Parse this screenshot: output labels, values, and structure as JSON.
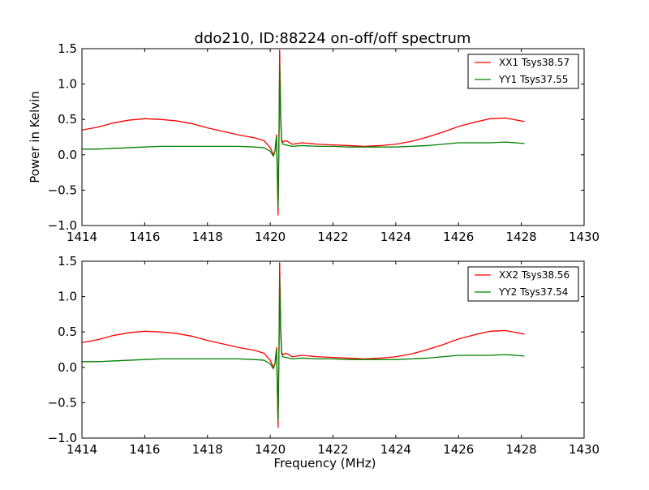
{
  "figure": {
    "title": "ddo210, ID:88224 on-off/off spectrum"
  },
  "chart_data": [
    {
      "type": "line",
      "title": "ddo210, ID:88224 on-off/off spectrum",
      "xlabel": "",
      "ylabel": "Power in Kelvin",
      "xlim": [
        1414,
        1430
      ],
      "ylim": [
        -1.0,
        1.5
      ],
      "xticks": [
        1414,
        1416,
        1418,
        1420,
        1422,
        1424,
        1426,
        1428,
        1430
      ],
      "yticks": [
        -1.0,
        -0.5,
        0.0,
        0.5,
        1.0,
        1.5
      ],
      "grid": false,
      "legend_position": "top-right",
      "series": [
        {
          "name": "XX1 Tsys38.57",
          "color": "#ff0000",
          "x": [
            1414.0,
            1414.5,
            1415.0,
            1415.5,
            1416.0,
            1416.5,
            1417.0,
            1417.5,
            1418.0,
            1418.5,
            1419.0,
            1419.5,
            1419.8,
            1420.0,
            1420.1,
            1420.15,
            1420.2,
            1420.25,
            1420.28,
            1420.3,
            1420.33,
            1420.36,
            1420.4,
            1420.5,
            1420.7,
            1421.0,
            1421.5,
            1422.0,
            1422.5,
            1423.0,
            1423.5,
            1424.0,
            1424.5,
            1425.0,
            1425.5,
            1426.0,
            1426.5,
            1427.0,
            1427.5,
            1428.1
          ],
          "y": [
            0.35,
            0.39,
            0.45,
            0.49,
            0.51,
            0.5,
            0.48,
            0.44,
            0.38,
            0.33,
            0.28,
            0.24,
            0.2,
            0.1,
            0.0,
            0.05,
            0.28,
            -0.85,
            0.3,
            1.48,
            0.6,
            0.22,
            0.18,
            0.2,
            0.15,
            0.17,
            0.15,
            0.14,
            0.13,
            0.12,
            0.13,
            0.15,
            0.19,
            0.25,
            0.32,
            0.4,
            0.46,
            0.51,
            0.52,
            0.47
          ]
        },
        {
          "name": "YY1 Tsys37.55",
          "color": "#008000",
          "x": [
            1414.0,
            1414.5,
            1415.0,
            1415.5,
            1416.0,
            1416.5,
            1417.0,
            1417.5,
            1418.0,
            1418.5,
            1419.0,
            1419.5,
            1419.8,
            1420.0,
            1420.1,
            1420.15,
            1420.2,
            1420.25,
            1420.28,
            1420.3,
            1420.33,
            1420.36,
            1420.4,
            1420.5,
            1420.7,
            1421.0,
            1421.5,
            1422.0,
            1422.5,
            1423.0,
            1423.5,
            1424.0,
            1424.5,
            1425.0,
            1425.5,
            1426.0,
            1426.5,
            1427.0,
            1427.5,
            1428.1
          ],
          "y": [
            0.08,
            0.08,
            0.09,
            0.1,
            0.11,
            0.12,
            0.12,
            0.12,
            0.12,
            0.12,
            0.12,
            0.11,
            0.1,
            0.05,
            -0.02,
            0.05,
            0.25,
            -0.75,
            0.3,
            1.28,
            0.55,
            0.2,
            0.15,
            0.14,
            0.12,
            0.13,
            0.12,
            0.12,
            0.11,
            0.11,
            0.11,
            0.11,
            0.12,
            0.13,
            0.15,
            0.17,
            0.17,
            0.17,
            0.18,
            0.16
          ]
        }
      ]
    },
    {
      "type": "line",
      "title": "",
      "xlabel": "Frequency (MHz)",
      "ylabel": "",
      "xlim": [
        1414,
        1430
      ],
      "ylim": [
        -1.0,
        1.5
      ],
      "xticks": [
        1414,
        1416,
        1418,
        1420,
        1422,
        1424,
        1426,
        1428,
        1430
      ],
      "yticks": [
        -1.0,
        -0.5,
        0.0,
        0.5,
        1.0,
        1.5
      ],
      "grid": false,
      "legend_position": "top-right",
      "series": [
        {
          "name": "XX2 Tsys38.56",
          "color": "#ff0000",
          "x": [
            1414.0,
            1414.5,
            1415.0,
            1415.5,
            1416.0,
            1416.5,
            1417.0,
            1417.5,
            1418.0,
            1418.5,
            1419.0,
            1419.5,
            1419.8,
            1420.0,
            1420.1,
            1420.15,
            1420.2,
            1420.25,
            1420.28,
            1420.3,
            1420.33,
            1420.36,
            1420.4,
            1420.5,
            1420.7,
            1421.0,
            1421.5,
            1422.0,
            1422.5,
            1423.0,
            1423.5,
            1424.0,
            1424.5,
            1425.0,
            1425.5,
            1426.0,
            1426.5,
            1427.0,
            1427.5,
            1428.1
          ],
          "y": [
            0.35,
            0.39,
            0.45,
            0.49,
            0.51,
            0.5,
            0.48,
            0.44,
            0.38,
            0.33,
            0.28,
            0.24,
            0.2,
            0.1,
            0.0,
            0.05,
            0.28,
            -0.85,
            0.3,
            1.48,
            0.6,
            0.22,
            0.18,
            0.2,
            0.15,
            0.17,
            0.15,
            0.14,
            0.13,
            0.12,
            0.13,
            0.15,
            0.19,
            0.25,
            0.32,
            0.4,
            0.46,
            0.51,
            0.52,
            0.47
          ]
        },
        {
          "name": "YY2 Tsys37.54",
          "color": "#008000",
          "x": [
            1414.0,
            1414.5,
            1415.0,
            1415.5,
            1416.0,
            1416.5,
            1417.0,
            1417.5,
            1418.0,
            1418.5,
            1419.0,
            1419.5,
            1419.8,
            1420.0,
            1420.1,
            1420.15,
            1420.2,
            1420.25,
            1420.28,
            1420.3,
            1420.33,
            1420.36,
            1420.4,
            1420.5,
            1420.7,
            1421.0,
            1421.5,
            1422.0,
            1422.5,
            1423.0,
            1423.5,
            1424.0,
            1424.5,
            1425.0,
            1425.5,
            1426.0,
            1426.5,
            1427.0,
            1427.5,
            1428.1
          ],
          "y": [
            0.08,
            0.08,
            0.09,
            0.1,
            0.11,
            0.12,
            0.12,
            0.12,
            0.12,
            0.12,
            0.12,
            0.11,
            0.1,
            0.05,
            -0.02,
            0.05,
            0.25,
            -0.75,
            0.3,
            1.28,
            0.55,
            0.2,
            0.15,
            0.14,
            0.12,
            0.13,
            0.12,
            0.12,
            0.11,
            0.11,
            0.11,
            0.11,
            0.12,
            0.13,
            0.15,
            0.17,
            0.17,
            0.17,
            0.18,
            0.16
          ]
        }
      ]
    }
  ]
}
